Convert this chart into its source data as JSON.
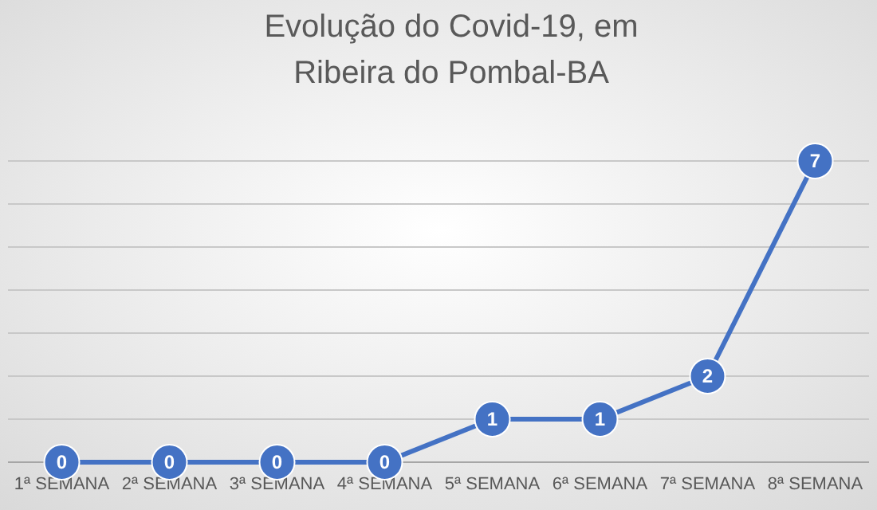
{
  "chart_data": {
    "type": "line",
    "title": "Evolução do Covid-19, em\nRibeira do Pombal-BA",
    "categories": [
      "1ª SEMANA",
      "2ª SEMANA",
      "3ª SEMANA",
      "4ª SEMANA",
      "5ª SEMANA",
      "6ª SEMANA",
      "7ª SEMANA",
      "8ª SEMANA"
    ],
    "series": [
      {
        "color": "#4472c4",
        "values": [
          0,
          0,
          0,
          0,
          1,
          1,
          2,
          7
        ]
      }
    ],
    "ylim": [
      0,
      7
    ],
    "yticks": [
      {
        "value": 0,
        "label": null
      },
      {
        "value": 1,
        "label": null
      },
      {
        "value": 2,
        "label": null
      },
      {
        "value": 3,
        "label": null
      },
      {
        "value": 4,
        "label": null
      },
      {
        "value": 5,
        "label": null
      },
      {
        "value": 6,
        "label": null
      },
      {
        "value": 7,
        "label": null
      }
    ],
    "tick_labels": "x",
    "grid": "y",
    "marker": "circle",
    "line_style": "solid",
    "data_labels": true
  }
}
